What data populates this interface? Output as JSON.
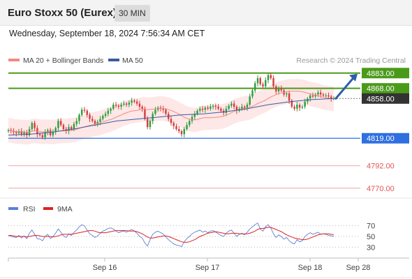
{
  "header": {
    "title": "Euro Stoxx 50 (Eurex)",
    "timeframe": "30 MIN",
    "datetime": "Wednesday, September 18, 2024 7:56:34 AM CET"
  },
  "legend": {
    "ma20_label": "MA 20 + Bollinger Bands",
    "ma50_label": "MA 50",
    "ma20_color": "#f28b82",
    "ma50_color": "#3a5ba0",
    "source": "Research © 2024 Trading Central"
  },
  "chart_data": {
    "type": "candlestick",
    "price_range": [
      4763,
      4889
    ],
    "levels": [
      {
        "value": 4883.0,
        "label": "4883.00",
        "kind": "resistance",
        "color": "#4a9a1a"
      },
      {
        "value": 4868.0,
        "label": "4868.00",
        "kind": "resistance",
        "color": "#4a9a1a"
      },
      {
        "value": 4858.0,
        "label": "4858.00",
        "kind": "last",
        "color": "#333333"
      },
      {
        "value": 4819.0,
        "label": "4819.00",
        "kind": "pivot",
        "color": "#2f6fe0"
      },
      {
        "value": 4792.0,
        "label": "4792.00",
        "kind": "support",
        "color": "#e25555"
      },
      {
        "value": 4770.0,
        "label": "4770.00",
        "kind": "support",
        "color": "#e25555"
      }
    ],
    "closes": [
      4827,
      4826,
      4825,
      4824,
      4826,
      4823,
      4825,
      4822,
      4828,
      4834,
      4829,
      4823,
      4822,
      4820,
      4825,
      4827,
      4822,
      4825,
      4829,
      4836,
      4832,
      4828,
      4826,
      4830,
      4828,
      4833,
      4836,
      4842,
      4847,
      4846,
      4842,
      4838,
      4836,
      4833,
      4835,
      4838,
      4841,
      4843,
      4846,
      4848,
      4852,
      4851,
      4850,
      4852,
      4853,
      4852,
      4854,
      4856,
      4855,
      4853,
      4850,
      4848,
      4838,
      4830,
      4836,
      4843,
      4847,
      4849,
      4848,
      4847,
      4843,
      4838,
      4834,
      4831,
      4828,
      4826,
      4823,
      4828,
      4832,
      4836,
      4840,
      4843,
      4846,
      4848,
      4847,
      4849,
      4848,
      4850,
      4851,
      4850,
      4848,
      4846,
      4844,
      4848,
      4851,
      4853,
      4850,
      4846,
      4848,
      4850,
      4849,
      4852,
      4860,
      4866,
      4873,
      4878,
      4872,
      4870,
      4876,
      4881,
      4878,
      4870,
      4865,
      4868,
      4866,
      4862,
      4863,
      4856,
      4850,
      4848,
      4852,
      4849,
      4850,
      4855,
      4858,
      4861,
      4860,
      4862,
      4864,
      4862,
      4861,
      4861,
      4860,
      4858,
      4858
    ],
    "bollinger_upper_offset": 12,
    "bollinger_lower_offset": -12,
    "ma50": [
      4822,
      4823,
      4825,
      4828,
      4832,
      4836,
      4838,
      4840,
      4842,
      4843,
      4845,
      4848,
      4852,
      4855,
      4857,
      4858
    ],
    "rsi": {
      "label": "RSI",
      "ma_label": "9MA",
      "rsi_color": "#5b7fd6",
      "ma_color": "#dd2222",
      "levels": [
        "70",
        "50",
        "30"
      ],
      "range": [
        20,
        80
      ],
      "values": [
        52,
        50,
        49,
        48,
        52,
        47,
        51,
        46,
        56,
        62,
        54,
        46,
        45,
        42,
        50,
        54,
        46,
        50,
        56,
        64,
        58,
        51,
        48,
        55,
        52,
        58,
        62,
        68,
        72,
        70,
        62,
        55,
        52,
        48,
        51,
        56,
        60,
        62,
        65,
        66,
        64,
        60,
        57,
        59,
        60,
        58,
        61,
        63,
        60,
        56,
        50,
        47,
        38,
        32,
        44,
        54,
        58,
        60,
        57,
        55,
        49,
        44,
        40,
        36,
        34,
        33,
        31,
        40,
        46,
        50,
        55,
        58,
        60,
        62,
        58,
        60,
        57,
        60,
        61,
        58,
        55,
        52,
        50,
        56,
        60,
        62,
        56,
        50,
        54,
        56,
        53,
        58,
        64,
        68,
        72,
        75,
        64,
        60,
        68,
        72,
        66,
        55,
        48,
        53,
        50,
        45,
        48,
        42,
        38,
        36,
        44,
        40,
        42,
        50,
        54,
        57,
        54,
        56,
        58,
        54,
        55,
        54,
        52,
        51,
        50
      ],
      "ma_values": [
        52,
        52,
        51,
        50,
        50,
        50,
        50,
        49,
        50,
        51,
        52,
        52,
        51,
        50,
        50,
        50,
        50,
        49,
        50,
        51,
        53,
        54,
        54,
        54,
        54,
        55,
        56,
        57,
        58,
        59,
        60,
        61,
        61,
        60,
        58,
        57,
        57,
        57,
        58,
        59,
        60,
        61,
        61,
        61,
        61,
        61,
        60,
        60,
        60,
        59,
        57,
        55,
        52,
        49,
        47,
        47,
        48,
        49,
        50,
        51,
        51,
        50,
        48,
        46,
        44,
        42,
        40,
        39,
        39,
        40,
        42,
        44,
        47,
        50,
        52,
        54,
        56,
        57,
        58,
        59,
        58,
        57,
        56,
        55,
        55,
        56,
        56,
        56,
        55,
        55,
        55,
        55,
        56,
        58,
        60,
        63,
        65,
        65,
        66,
        67,
        67,
        65,
        63,
        61,
        59,
        56,
        53,
        51,
        49,
        47,
        46,
        45,
        44,
        44,
        45,
        47,
        49,
        51,
        53,
        54,
        55,
        55,
        55,
        54,
        53
      ]
    },
    "x_tick_labels": [
      "Sep 16",
      "Sep 17",
      "Sep 18",
      "Sep 28"
    ]
  }
}
